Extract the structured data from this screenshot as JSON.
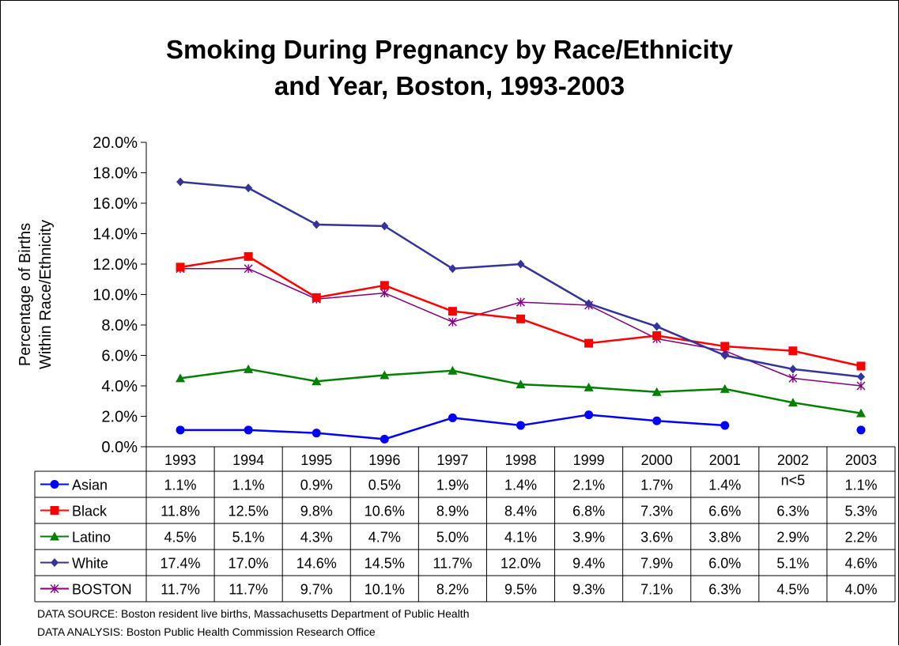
{
  "chart_data": {
    "type": "line",
    "title_lines": [
      "Smoking During Pregnancy by Race/Ethnicity",
      "and Year, Boston, 1993-2003"
    ],
    "ylabel_lines": [
      "Percentage of Births",
      "Within Race/Ethnicity"
    ],
    "xlabel": "",
    "categories": [
      "1993",
      "1994",
      "1995",
      "1996",
      "1997",
      "1998",
      "1999",
      "2000",
      "2001",
      "2002",
      "2003"
    ],
    "ylim": [
      0,
      20
    ],
    "yticks": [
      "0.0%",
      "2.0%",
      "4.0%",
      "6.0%",
      "8.0%",
      "10.0%",
      "12.0%",
      "14.0%",
      "16.0%",
      "18.0%",
      "20.0%"
    ],
    "grid": false,
    "legend": "data-table",
    "series": [
      {
        "name": "Asian",
        "color": "#0000FF",
        "marker": "circle",
        "values": [
          1.1,
          1.1,
          0.9,
          0.5,
          1.9,
          1.4,
          2.1,
          1.7,
          1.4,
          null,
          1.1
        ],
        "labels": [
          "1.1%",
          "1.1%",
          "0.9%",
          "0.5%",
          "1.9%",
          "1.4%",
          "2.1%",
          "1.7%",
          "1.4%",
          "n<5",
          "1.1%"
        ]
      },
      {
        "name": "Black",
        "color": "#FF0000",
        "marker": "square",
        "values": [
          11.8,
          12.5,
          9.8,
          10.6,
          8.9,
          8.4,
          6.8,
          7.3,
          6.6,
          6.3,
          5.3
        ],
        "labels": [
          "11.8%",
          "12.5%",
          "9.8%",
          "10.6%",
          "8.9%",
          "8.4%",
          "6.8%",
          "7.3%",
          "6.6%",
          "6.3%",
          "5.3%"
        ]
      },
      {
        "name": "Latino",
        "color": "#008000",
        "marker": "triangle",
        "values": [
          4.5,
          5.1,
          4.3,
          4.7,
          5.0,
          4.1,
          3.9,
          3.6,
          3.8,
          2.9,
          2.2
        ],
        "labels": [
          "4.5%",
          "5.1%",
          "4.3%",
          "4.7%",
          "5.0%",
          "4.1%",
          "3.9%",
          "3.6%",
          "3.8%",
          "2.9%",
          "2.2%"
        ]
      },
      {
        "name": "White",
        "color": "#333399",
        "marker": "diamond",
        "values": [
          17.4,
          17.0,
          14.6,
          14.5,
          11.7,
          12.0,
          9.4,
          7.9,
          6.0,
          5.1,
          4.6
        ],
        "labels": [
          "17.4%",
          "17.0%",
          "14.6%",
          "14.5%",
          "11.7%",
          "12.0%",
          "9.4%",
          "7.9%",
          "6.0%",
          "5.1%",
          "4.6%"
        ]
      },
      {
        "name": "BOSTON",
        "color": "#800080",
        "marker": "star",
        "values": [
          11.7,
          11.7,
          9.7,
          10.1,
          8.2,
          9.5,
          9.3,
          7.1,
          6.3,
          4.5,
          4.0
        ],
        "labels": [
          "11.7%",
          "11.7%",
          "9.7%",
          "10.1%",
          "8.2%",
          "9.5%",
          "9.3%",
          "7.1%",
          "6.3%",
          "4.5%",
          "4.0%"
        ]
      }
    ]
  },
  "footnotes": {
    "source": "DATA SOURCE:  Boston resident live births, Massachusetts Department of Public Health",
    "analysis": "DATA ANALYSIS:  Boston Public Health Commission Research Office"
  }
}
